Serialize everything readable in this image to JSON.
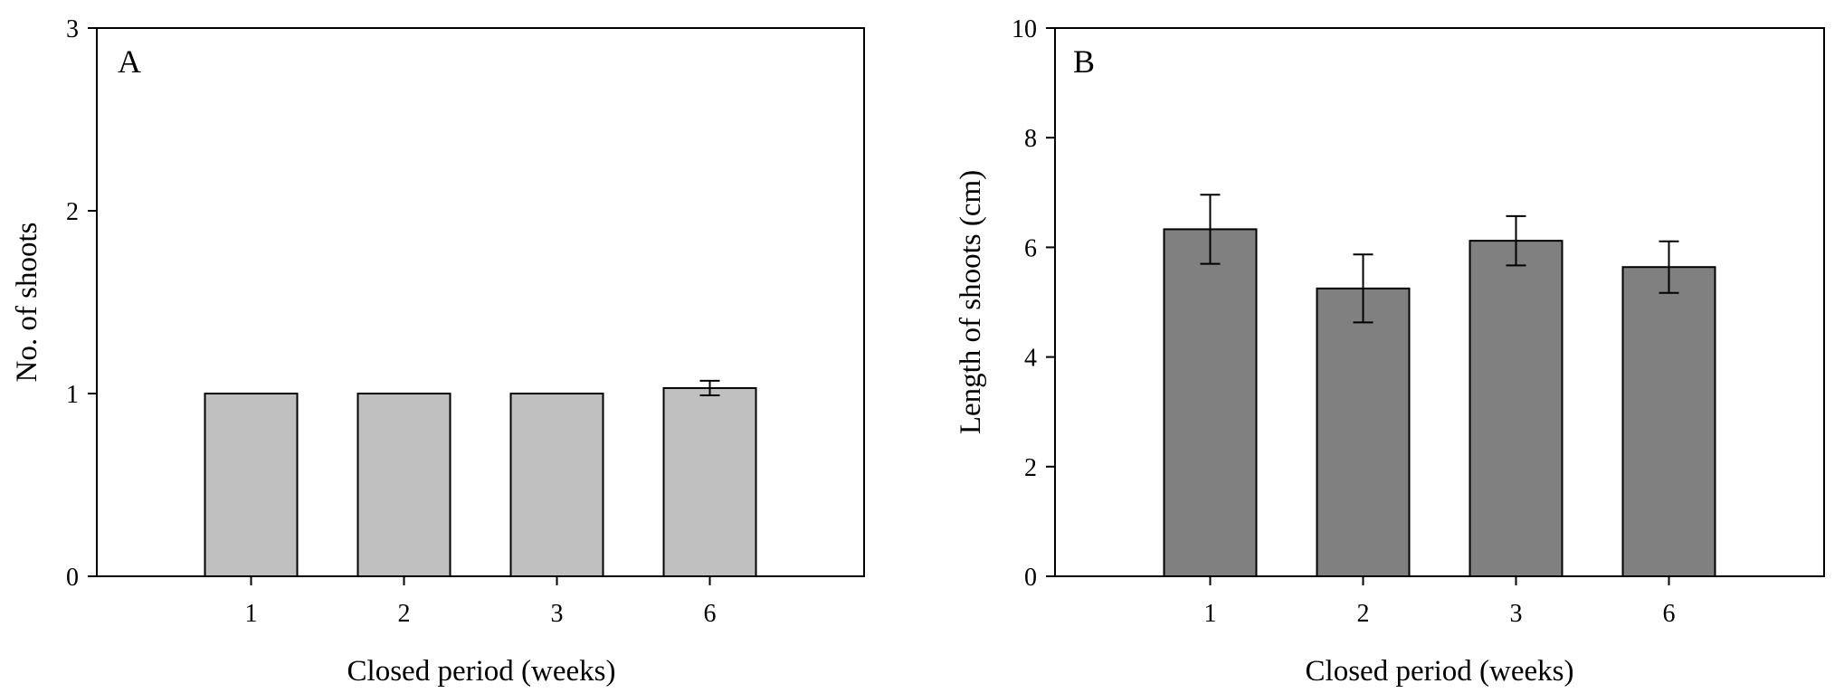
{
  "chart_data": [
    {
      "type": "bar",
      "panel_label": "A",
      "categories": [
        "1",
        "2",
        "3",
        "6"
      ],
      "values": [
        1.0,
        1.0,
        1.0,
        1.03
      ],
      "errors": [
        0,
        0,
        0,
        0.04
      ],
      "xlabel": "Closed period (weeks)",
      "ylabel": "No. of shoots",
      "ylim": [
        0,
        3
      ],
      "yticks": [
        "0",
        "1",
        "2",
        "3"
      ],
      "bar_color": "#c0c0c0",
      "grid": false
    },
    {
      "type": "bar",
      "panel_label": "B",
      "categories": [
        "1",
        "2",
        "3",
        "6"
      ],
      "values": [
        6.33,
        5.25,
        6.12,
        5.64
      ],
      "errors": [
        0.63,
        0.62,
        0.45,
        0.47
      ],
      "xlabel": "Closed period (weeks)",
      "ylabel": "Length of shoots (cm)",
      "ylim": [
        0,
        10
      ],
      "yticks": [
        "0",
        "2",
        "4",
        "6",
        "8",
        "10"
      ],
      "bar_color": "#808080",
      "grid": false
    }
  ]
}
